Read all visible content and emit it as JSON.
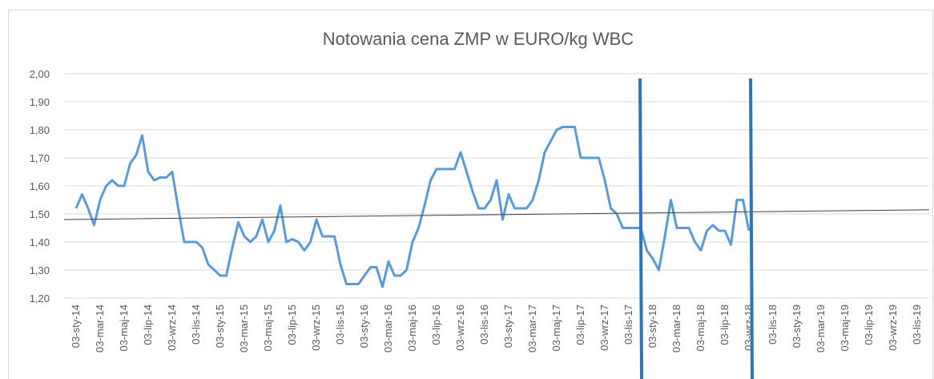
{
  "chart_data": {
    "type": "line",
    "title": "Notowania cena ZMP w EURO/kg WBC",
    "categories": [
      "03-sty-14",
      null,
      null,
      null,
      "03-mar-14",
      null,
      null,
      null,
      "03-maj-14",
      null,
      null,
      null,
      "03-lip-14",
      null,
      null,
      null,
      "03-wrz-14",
      null,
      null,
      null,
      "03-lis-14",
      null,
      null,
      null,
      "03-sty-15",
      null,
      null,
      null,
      "03-mar-15",
      null,
      null,
      null,
      "03-maj-15",
      null,
      null,
      null,
      "03-lip-15",
      null,
      null,
      null,
      "03-wrz-15",
      null,
      null,
      null,
      "03-lis-15",
      null,
      null,
      null,
      "03-sty-16",
      null,
      null,
      null,
      "03-mar-16",
      null,
      null,
      null,
      "03-maj-16",
      null,
      null,
      null,
      "03-lip-16",
      null,
      null,
      null,
      "03-wrz-16",
      null,
      null,
      null,
      "03-lis-16",
      null,
      null,
      null,
      "03-sty-17",
      null,
      null,
      null,
      "03-mar-17",
      null,
      null,
      null,
      "03-maj-17",
      null,
      null,
      null,
      "03-lip-17",
      null,
      null,
      null,
      "03-wrz-17",
      null,
      null,
      null,
      "03-lis-17",
      null,
      null,
      null,
      "03-sty-18",
      null,
      null,
      null,
      "03-mar-18",
      null,
      null,
      null,
      "03-maj-18",
      null,
      null,
      null,
      "03-lip-18",
      null,
      null,
      null,
      "03-wrz-18",
      null,
      null,
      null,
      "03-lis-18",
      null,
      null,
      null,
      "03-sty-19",
      null,
      null,
      null,
      "03-mar-19",
      null,
      null,
      null,
      "03-maj-19",
      null,
      null,
      null,
      "03-lip-19",
      null,
      null,
      null,
      "03-wrz-19",
      null,
      null,
      null,
      "03-lis-19"
    ],
    "series": [
      {
        "color": "#5b9bd5",
        "values": [
          1.52,
          1.57,
          1.52,
          1.46,
          1.55,
          1.6,
          1.62,
          1.6,
          1.6,
          1.68,
          1.71,
          1.78,
          1.65,
          1.62,
          1.63,
          1.63,
          1.65,
          1.52,
          1.4,
          1.4,
          1.4,
          1.38,
          1.32,
          1.3,
          1.28,
          1.28,
          1.38,
          1.47,
          1.42,
          1.4,
          1.42,
          1.48,
          1.4,
          1.44,
          1.53,
          1.4,
          1.41,
          1.4,
          1.37,
          1.4,
          1.48,
          1.42,
          1.42,
          1.42,
          1.32,
          1.25,
          1.25,
          1.25,
          1.28,
          1.31,
          1.31,
          1.24,
          1.33,
          1.28,
          1.28,
          1.3,
          1.4,
          1.45,
          1.53,
          1.62,
          1.66,
          1.66,
          1.66,
          1.66,
          1.72,
          1.65,
          1.58,
          1.52,
          1.52,
          1.55,
          1.62,
          1.48,
          1.57,
          1.52,
          1.52,
          1.52,
          1.55,
          1.62,
          1.72,
          1.76,
          1.8,
          1.81,
          1.81,
          1.81,
          1.7,
          1.7,
          1.7,
          1.7,
          1.62,
          1.52,
          1.5,
          1.45,
          1.45,
          1.45,
          1.45,
          1.37,
          1.34,
          1.3,
          1.42,
          1.55,
          1.45,
          1.45,
          1.45,
          1.4,
          1.37,
          1.44,
          1.46,
          1.44,
          1.44,
          1.39,
          1.55,
          1.55,
          1.44,
          null,
          null,
          null,
          null,
          null,
          null,
          null,
          null,
          null,
          null,
          null,
          null,
          null,
          null,
          null,
          null,
          null,
          null,
          null,
          null,
          null,
          null,
          null,
          null,
          null,
          null,
          null,
          null
        ]
      }
    ],
    "trendline": {
      "color": "#404040",
      "values": [
        1.48,
        1.515
      ]
    },
    "ylim": [
      1.2,
      2.0
    ],
    "yticks": [
      {
        "value": 1.2,
        "label": "1,20"
      },
      {
        "value": 1.3,
        "label": "1,30"
      },
      {
        "value": 1.4,
        "label": "1,40"
      },
      {
        "value": 1.5,
        "label": "1,50"
      },
      {
        "value": 1.6,
        "label": "1,60"
      },
      {
        "value": 1.7,
        "label": "1,70"
      },
      {
        "value": 1.8,
        "label": "1,80"
      },
      {
        "value": 1.9,
        "label": "1,90"
      },
      {
        "value": 2.0,
        "label": "2,00"
      }
    ],
    "grid": true
  }
}
